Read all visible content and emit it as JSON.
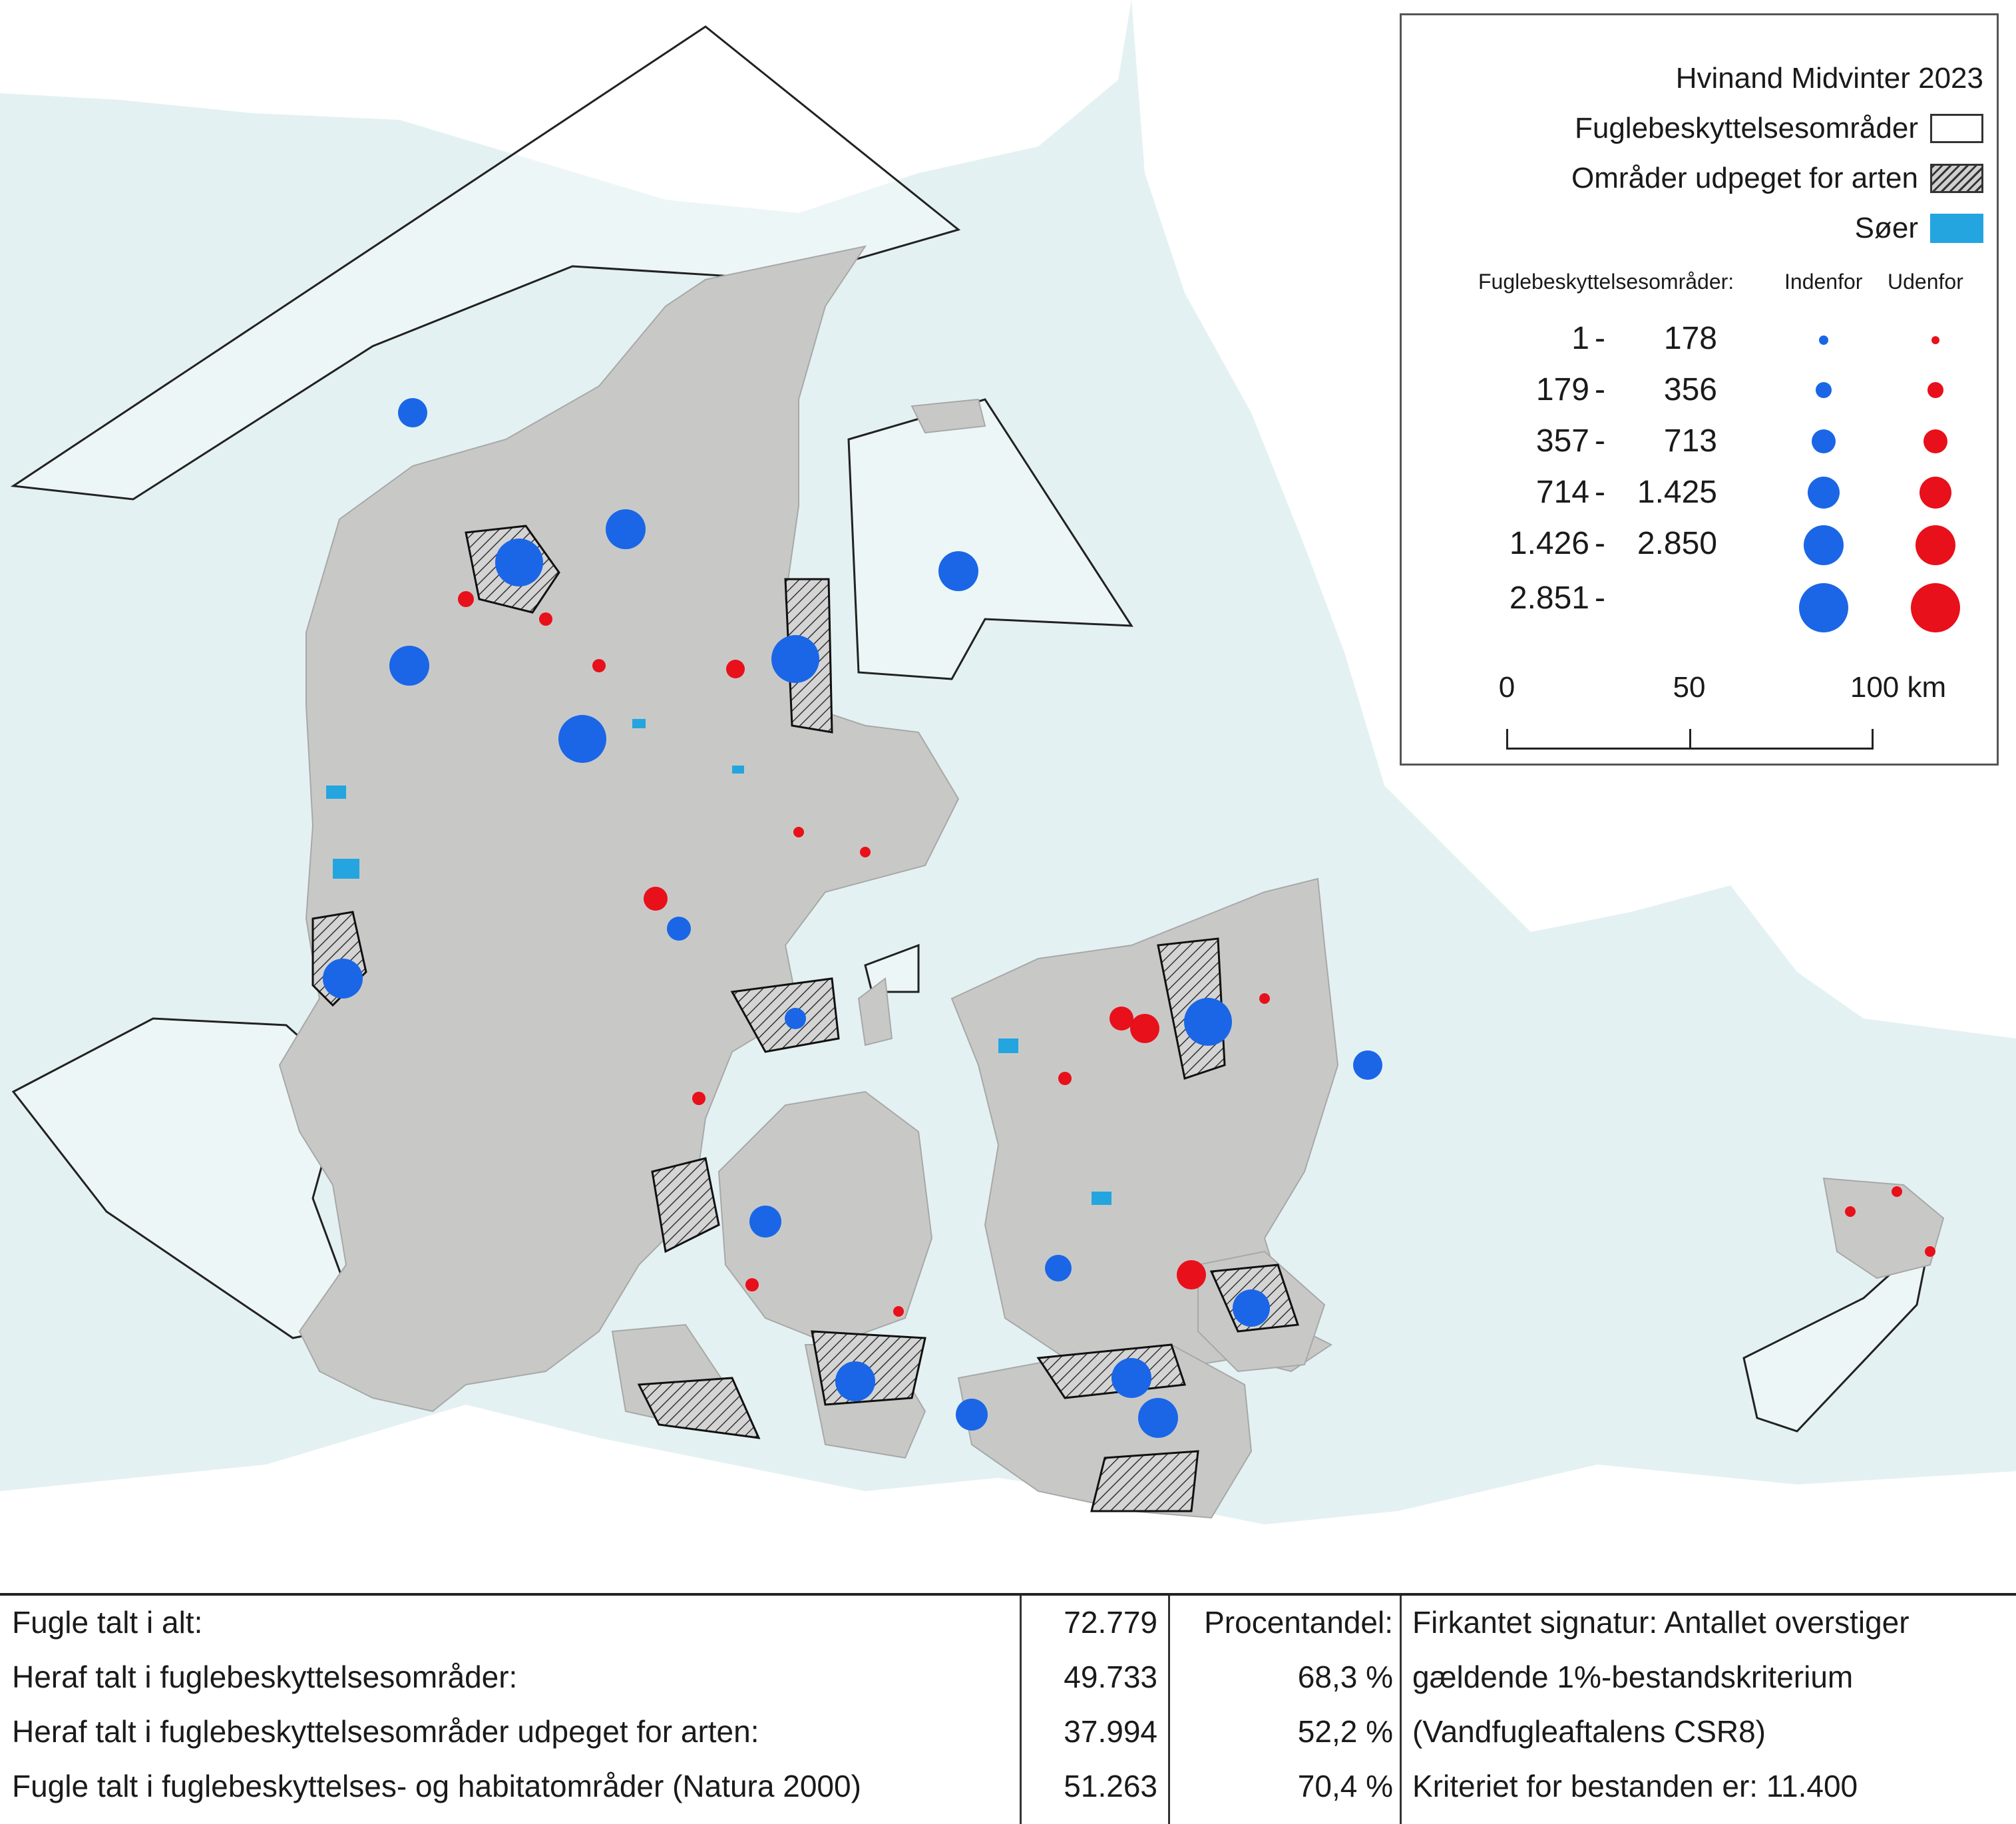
{
  "legend": {
    "title": "Hvinand Midvinter 2023",
    "items": [
      {
        "label": "Fuglebeskyttelsesområder",
        "swatch": "empty"
      },
      {
        "label": "Områder udpeget for arten",
        "swatch": "hatch"
      },
      {
        "label": "Søer",
        "swatch": "lake"
      }
    ],
    "size_header": "Fuglebeskyttelsesområder:",
    "col_inside": "Indenfor",
    "col_outside": "Udenfor",
    "classes": [
      {
        "from": "1",
        "dash": "-",
        "to": "178"
      },
      {
        "from": "179",
        "dash": "-",
        "to": "356"
      },
      {
        "from": "357",
        "dash": "-",
        "to": "713"
      },
      {
        "from": "714",
        "dash": "-",
        "to": "1.425"
      },
      {
        "from": "1.426",
        "dash": "-",
        "to": "2.850"
      },
      {
        "from": "2.851",
        "dash": "-",
        "to": ""
      }
    ],
    "scale": {
      "labels": [
        "0",
        "50",
        "100 km"
      ]
    },
    "colors": {
      "inside": "#1a66e6",
      "outside": "#e8101a",
      "lake": "#24a5e0",
      "land": "#c8c9c7",
      "sea": "#e4f1f2"
    }
  },
  "stats": {
    "rows": [
      {
        "label": "Fugle talt i alt:",
        "value": "72.779",
        "pct": "Procentandel:",
        "note": "Firkantet signatur: Antallet overstiger"
      },
      {
        "label": "Heraf talt i fuglebeskyttelsesområder:",
        "value": "49.733",
        "pct": "68,3 %",
        "note": "gældende 1%-bestandskriterium"
      },
      {
        "label": "Heraf talt i fuglebeskyttelsesområder udpeget for arten:",
        "value": "37.994",
        "pct": "52,2 %",
        "note": "(Vandfugleaftalens CSR8)"
      },
      {
        "label": "Fugle talt i fuglebeskyttelses- og habitatområder (Natura 2000)",
        "value": "51.263",
        "pct": "70,4 %",
        "note": "Kriteriet for bestanden er: 11.400"
      }
    ]
  }
}
